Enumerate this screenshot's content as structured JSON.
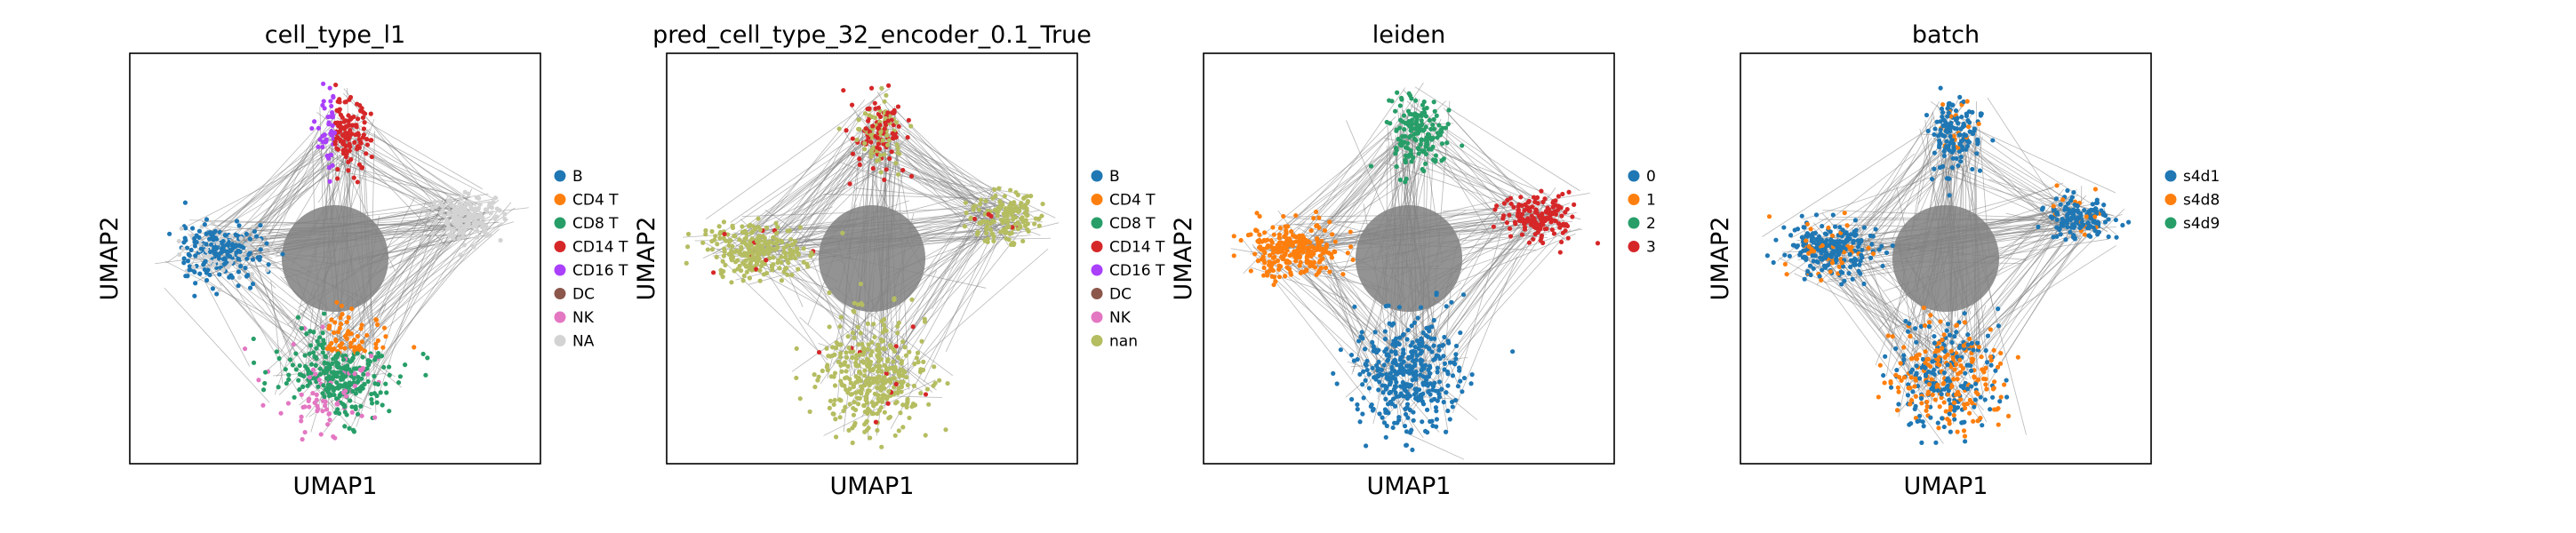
{
  "figure": {
    "background": "#ffffff",
    "edge_color": "#808080",
    "point_size_note": "scatter"
  },
  "chart_data": [
    {
      "type": "scatter",
      "title": "cell_type_l1",
      "xlabel": "UMAP1",
      "ylabel": "UMAP2",
      "grid": false,
      "ticks": false,
      "legend_position": "right",
      "legend": [
        {
          "label": "B",
          "color": "#1f77b4"
        },
        {
          "label": "CD4 T",
          "color": "#ff7f0e"
        },
        {
          "label": "CD8 T",
          "color": "#279e68"
        },
        {
          "label": "CD14 T",
          "color": "#d62728"
        },
        {
          "label": "CD16 T",
          "color": "#aa40fc"
        },
        {
          "label": "DC",
          "color": "#8c564b"
        },
        {
          "label": "NK",
          "color": "#e377c2"
        },
        {
          "label": "NA",
          "color": "#d3d3d3"
        }
      ],
      "clusters": [
        {
          "label": "NA",
          "x": [
            0.25,
            0.9
          ],
          "y": [
            0.35,
            0.55
          ],
          "share": "large"
        },
        {
          "label": "B",
          "x": [
            0.14,
            0.24
          ],
          "y": [
            0.4,
            0.5
          ]
        },
        {
          "label": "CD4 T",
          "x": [
            0.52,
            0.68
          ],
          "y": [
            0.27,
            0.33
          ]
        },
        {
          "label": "CD8 T",
          "x": [
            0.4,
            0.62
          ],
          "y": [
            0.12,
            0.28
          ]
        },
        {
          "label": "NK",
          "x": [
            0.35,
            0.5
          ],
          "y": [
            0.08,
            0.18
          ]
        },
        {
          "label": "CD14 T",
          "x": [
            0.52,
            0.6
          ],
          "y": [
            0.78,
            0.86
          ]
        },
        {
          "label": "CD16 T",
          "x": [
            0.44,
            0.5
          ],
          "y": [
            0.82,
            0.86
          ]
        }
      ]
    },
    {
      "type": "scatter",
      "title": "pred_cell_type_32_encoder_0.1_True",
      "xlabel": "UMAP1",
      "ylabel": "UMAP2",
      "grid": false,
      "ticks": false,
      "legend_position": "right",
      "legend": [
        {
          "label": "B",
          "color": "#1f77b4"
        },
        {
          "label": "CD4 T",
          "color": "#ff7f0e"
        },
        {
          "label": "CD8 T",
          "color": "#279e68"
        },
        {
          "label": "CD14 T",
          "color": "#d62728"
        },
        {
          "label": "CD16 T",
          "color": "#aa40fc"
        },
        {
          "label": "DC",
          "color": "#8c564b"
        },
        {
          "label": "NK",
          "color": "#e377c2"
        },
        {
          "label": "nan",
          "color": "#b5bd61"
        }
      ],
      "clusters": [
        {
          "label": "nan",
          "x": [
            0.1,
            0.9
          ],
          "y": [
            0.1,
            0.85
          ],
          "share": "dominant"
        },
        {
          "label": "CD14 T",
          "x": [
            0.44,
            0.6
          ],
          "y": [
            0.78,
            0.86
          ],
          "share": "scattered"
        }
      ]
    },
    {
      "type": "scatter",
      "title": "leiden",
      "xlabel": "UMAP1",
      "ylabel": "UMAP2",
      "grid": false,
      "ticks": false,
      "legend_position": "right",
      "legend": [
        {
          "label": "0",
          "color": "#1f77b4"
        },
        {
          "label": "1",
          "color": "#ff7f0e"
        },
        {
          "label": "2",
          "color": "#279e68"
        },
        {
          "label": "3",
          "color": "#d62728"
        }
      ],
      "clusters": [
        {
          "label": "0",
          "x": [
            0.35,
            0.65
          ],
          "y": [
            0.1,
            0.4
          ]
        },
        {
          "label": "1",
          "x": [
            0.1,
            0.35
          ],
          "y": [
            0.42,
            0.58
          ]
        },
        {
          "label": "2",
          "x": [
            0.42,
            0.62
          ],
          "y": [
            0.7,
            0.9
          ]
        },
        {
          "label": "3",
          "x": [
            0.75,
            0.92
          ],
          "y": [
            0.55,
            0.65
          ]
        }
      ]
    },
    {
      "type": "scatter",
      "title": "batch",
      "xlabel": "UMAP1",
      "ylabel": "UMAP2",
      "grid": false,
      "ticks": false,
      "legend_position": "right",
      "legend": [
        {
          "label": "s4d1",
          "color": "#1f77b4"
        },
        {
          "label": "s4d8",
          "color": "#ff7f0e"
        },
        {
          "label": "s4d9",
          "color": "#279e68"
        }
      ],
      "clusters": [
        {
          "label": "s4d1",
          "x": [
            0.1,
            0.92
          ],
          "y": [
            0.1,
            0.9
          ],
          "share": "dominant"
        },
        {
          "label": "s4d8",
          "x": [
            0.3,
            0.7
          ],
          "y": [
            0.1,
            0.4
          ],
          "share": "mixed"
        }
      ]
    }
  ]
}
